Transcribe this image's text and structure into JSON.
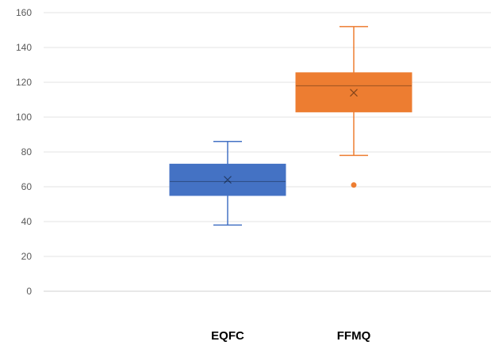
{
  "chart_data": {
    "type": "box",
    "title": "",
    "xlabel": "",
    "ylabel": "",
    "ylim": [
      0,
      160
    ],
    "yticks": [
      0,
      20,
      40,
      60,
      80,
      100,
      120,
      140,
      160
    ],
    "grid": true,
    "categories": [
      "EQFC",
      "FFMQ"
    ],
    "series": [
      {
        "category": "EQFC",
        "color": "#4472C4",
        "min": 38,
        "q1": 55,
        "median": 63,
        "q3": 73,
        "max": 86,
        "mean": 64,
        "outliers": []
      },
      {
        "category": "FFMQ",
        "color": "#ED7D31",
        "min": 78,
        "q1": 103,
        "median": 118,
        "q3": 125.5,
        "max": 152,
        "mean": 114,
        "outliers": [
          61
        ]
      }
    ]
  }
}
